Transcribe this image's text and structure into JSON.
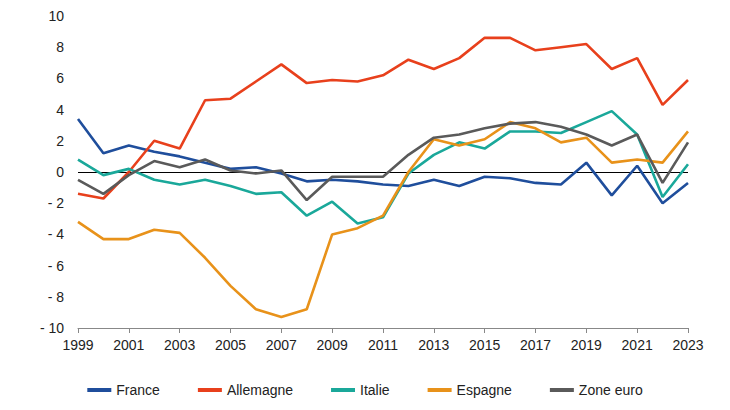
{
  "chart_data": {
    "type": "line",
    "x": [
      1999,
      2000,
      2001,
      2002,
      2003,
      2004,
      2005,
      2006,
      2007,
      2008,
      2009,
      2010,
      2011,
      2012,
      2013,
      2014,
      2015,
      2016,
      2017,
      2018,
      2019,
      2020,
      2021,
      2022,
      2023
    ],
    "xlim": [
      1999,
      2023
    ],
    "xticks": [
      1999,
      2001,
      2003,
      2005,
      2007,
      2009,
      2011,
      2013,
      2015,
      2017,
      2019,
      2021,
      2023
    ],
    "ylim": [
      -10,
      10
    ],
    "yticks": [
      {
        "value": -10,
        "label": "- 10"
      },
      {
        "value": -8,
        "label": "- 8"
      },
      {
        "value": -6,
        "label": "- 6"
      },
      {
        "value": -4,
        "label": "- 4"
      },
      {
        "value": -2,
        "label": "- 2"
      },
      0,
      2,
      4,
      6,
      8,
      10
    ],
    "grid": false,
    "legend": "bottom",
    "series": [
      {
        "name": "France",
        "color": "#1f4e9c",
        "values": [
          3.4,
          1.2,
          1.7,
          1.3,
          1.0,
          0.6,
          0.2,
          0.3,
          -0.1,
          -0.6,
          -0.5,
          -0.6,
          -0.8,
          -0.9,
          -0.5,
          -0.9,
          -0.3,
          -0.4,
          -0.7,
          -0.8,
          0.6,
          -1.5,
          0.4,
          -2.0,
          -0.7
        ]
      },
      {
        "name": "Allemagne",
        "color": "#e8401c",
        "values": [
          -1.4,
          -1.7,
          0.0,
          2.0,
          1.5,
          4.6,
          4.7,
          5.8,
          6.9,
          5.7,
          5.9,
          5.8,
          6.2,
          7.2,
          6.6,
          7.3,
          8.6,
          8.6,
          7.8,
          8.0,
          8.2,
          6.6,
          7.3,
          4.3,
          5.9
        ]
      },
      {
        "name": "Italie",
        "color": "#1aa89a",
        "values": [
          0.8,
          -0.2,
          0.2,
          -0.5,
          -0.8,
          -0.5,
          -0.9,
          -1.4,
          -1.3,
          -2.8,
          -1.9,
          -3.3,
          -2.9,
          -0.1,
          1.1,
          1.9,
          1.5,
          2.6,
          2.6,
          2.5,
          3.2,
          3.9,
          2.4,
          -1.6,
          0.5
        ]
      },
      {
        "name": "Espagne",
        "color": "#e8921a",
        "values": [
          -3.2,
          -4.3,
          -4.3,
          -3.7,
          -3.9,
          -5.5,
          -7.3,
          -8.8,
          -9.3,
          -8.8,
          -4.0,
          -3.6,
          -2.8,
          0.0,
          2.1,
          1.7,
          2.1,
          3.2,
          2.8,
          1.9,
          2.2,
          0.6,
          0.8,
          0.6,
          2.6
        ]
      },
      {
        "name": "Zone euro",
        "color": "#5a5a5a",
        "values": [
          -0.5,
          -1.4,
          -0.2,
          0.7,
          0.3,
          0.8,
          0.1,
          -0.1,
          0.1,
          -1.8,
          -0.3,
          -0.3,
          -0.3,
          1.1,
          2.2,
          2.4,
          2.8,
          3.1,
          3.2,
          2.9,
          2.4,
          1.7,
          2.4,
          -0.7,
          1.9
        ]
      }
    ]
  }
}
